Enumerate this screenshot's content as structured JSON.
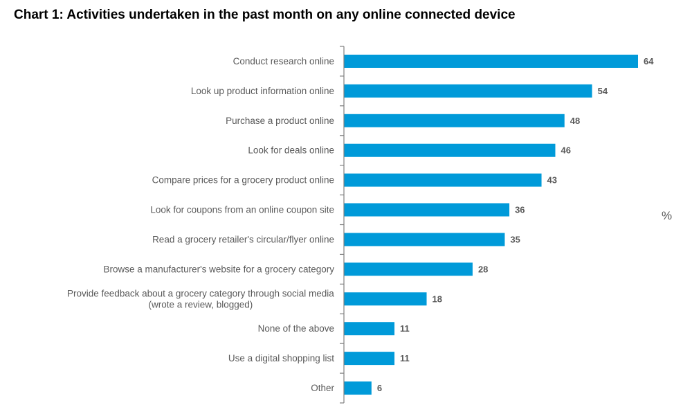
{
  "chart_data": {
    "type": "bar",
    "orientation": "horizontal",
    "title": "Chart 1: Activities undertaken in the past month on any online connected device",
    "xlabel": "",
    "ylabel": "",
    "unit_label": "%",
    "xlim": [
      0,
      64
    ],
    "grid": false,
    "legend": "none",
    "bar_color": "#009ad9",
    "categories": [
      [
        "Conduct research online"
      ],
      [
        "Look up product information online"
      ],
      [
        "Purchase a product online"
      ],
      [
        "Look for deals online"
      ],
      [
        "Compare prices for a grocery product online"
      ],
      [
        "Look for coupons from an online coupon site"
      ],
      [
        "Read a grocery retailer's circular/flyer online"
      ],
      [
        "Browse a manufacturer's website for a grocery category"
      ],
      [
        "Provide feedback about a grocery category through social media",
        "(wrote a review, blogged)"
      ],
      [
        "None of the above"
      ],
      [
        "Use a digital shopping list"
      ],
      [
        "Other"
      ]
    ],
    "values": [
      64,
      54,
      48,
      46,
      43,
      36,
      35,
      28,
      18,
      11,
      11,
      6
    ],
    "data_labels": [
      "64",
      "54",
      "48",
      "46",
      "43",
      "36",
      "35",
      "28",
      "18",
      "11",
      "11",
      "6"
    ]
  }
}
